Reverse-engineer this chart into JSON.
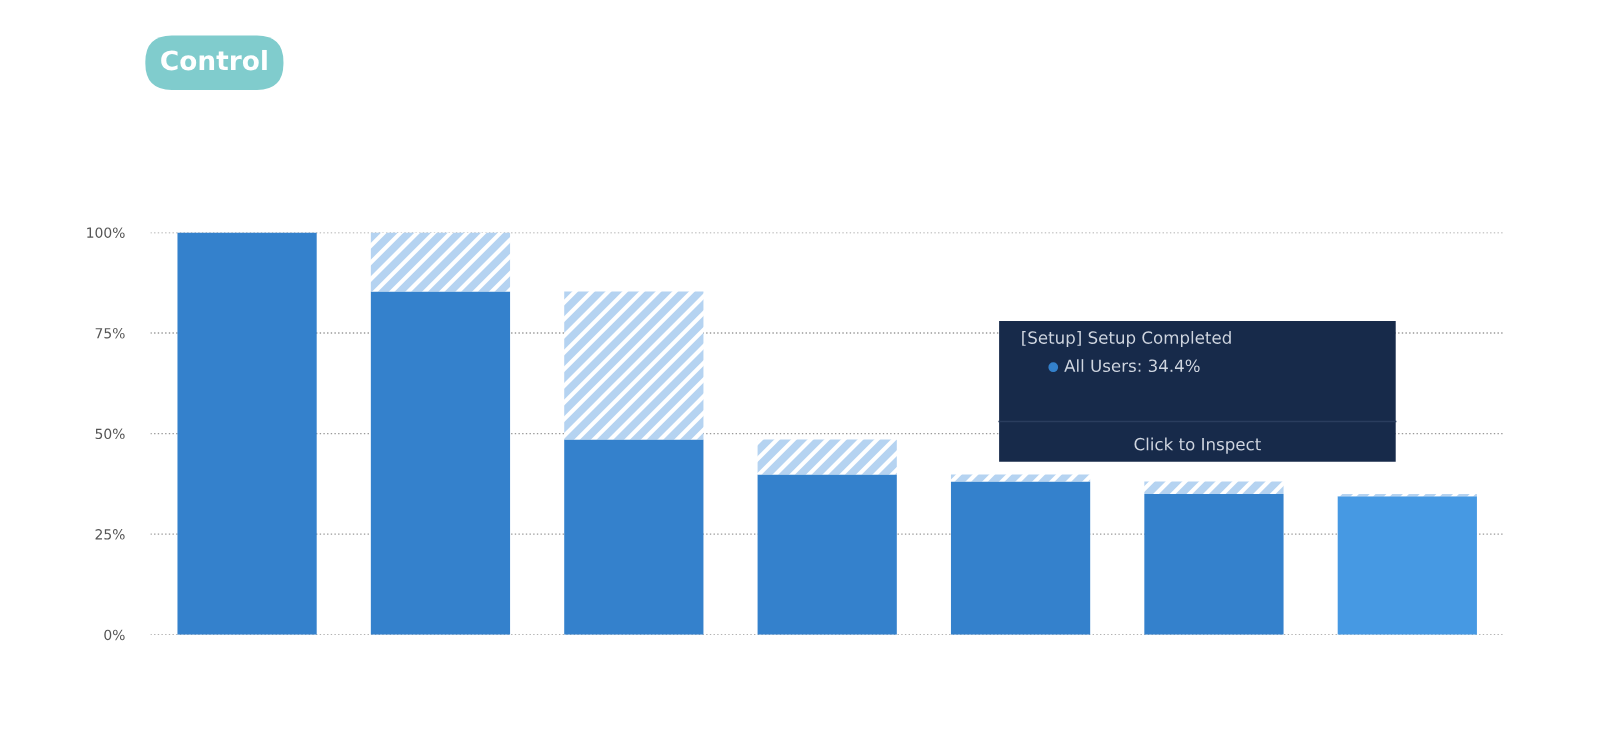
{
  "chart_data": {
    "type": "bar",
    "title": "Control",
    "stacked": true,
    "categories": [
      null,
      null,
      null,
      null,
      null,
      null,
      null
    ],
    "series": [
      {
        "color": "#3481cc",
        "colors": [
          "#3481cc",
          "#3481cc",
          "#3481cc",
          "#3481cc",
          "#3481cc",
          "#3481cc",
          "#4699e3"
        ],
        "values": [
          100,
          85.3,
          48.5,
          39.8,
          38.1,
          35.0,
          34.4
        ]
      },
      {
        "color": "#b5d3f1",
        "values": [
          0,
          14.7,
          36.8,
          8.7,
          1.7,
          3.1,
          0.6
        ]
      }
    ],
    "ylim": [
      0,
      100
    ],
    "yticks": [
      {
        "value": 0,
        "label": "0%"
      },
      {
        "value": 25,
        "label": "25%"
      },
      {
        "value": 50,
        "label": "50%"
      },
      {
        "value": 75,
        "label": "75%"
      },
      {
        "value": 100,
        "label": "100%"
      }
    ],
    "grid": "y",
    "legend": false,
    "annotations": [
      "[Setup] Setup Completed",
      "All Users: 34.4%",
      "Click to Inspect"
    ]
  }
}
